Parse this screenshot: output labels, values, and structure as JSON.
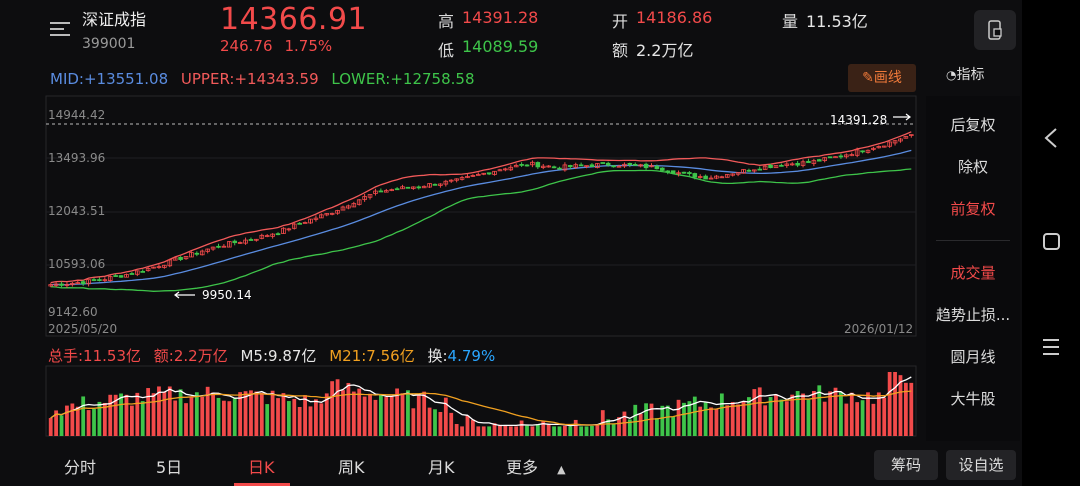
{
  "header": {
    "stock_name": "深证成指",
    "stock_code": "399001",
    "price": "14366.91",
    "change_value": "246.76",
    "change_pct": "1.75%",
    "high_label": "高",
    "high_value": "14391.28",
    "low_label": "低",
    "low_value": "14089.59",
    "open_label": "开",
    "open_value": "14186.86",
    "amount_label": "额",
    "amount_value": "2.2万亿",
    "volume_label": "量",
    "volume_value": "11.53亿"
  },
  "indicators": {
    "mid": "MID:+13551.08",
    "upper": "UPPER:+14343.59",
    "lower": "LOWER:+12758.58",
    "draw_button": "画线",
    "indicator_button": "指标"
  },
  "side_panel": {
    "items": [
      "后复权",
      "除权",
      "前复权",
      "成交量",
      "趋势止损...",
      "圆月线",
      "大牛股"
    ]
  },
  "chart_data": {
    "type": "candlestick",
    "y_ticks": [
      "14944.42",
      "13493.96",
      "12043.51",
      "10593.06",
      "9142.60"
    ],
    "x_start": "2025/05/20",
    "x_end": "2026/01/12",
    "max_marker": "14391.28",
    "min_marker": "9950.14",
    "ylim": [
      9142.6,
      14944.42
    ],
    "close_path": [
      9950,
      10000,
      10100,
      10250,
      10450,
      10700,
      10950,
      11150,
      11300,
      11500,
      11800,
      12050,
      12400,
      12700,
      12800,
      12900,
      13000,
      13200,
      13400,
      13500,
      13400,
      13450,
      13500,
      13450,
      13400,
      13200,
      13100,
      13250,
      13400,
      13500,
      13550,
      13700,
      13900,
      14100,
      14366
    ]
  },
  "volume_panel": {
    "total_hands": "总手:11.53亿",
    "amount": "额:2.2万亿",
    "m5": "M5:9.87亿",
    "m21": "M21:7.56亿",
    "turnover_label": "换:",
    "turnover_value": "4.79%"
  },
  "tabs": {
    "items": [
      "分时",
      "5日",
      "日K",
      "周K",
      "月K",
      "更多"
    ],
    "active": "日K",
    "chips": "筹码",
    "watchlist": "设自选"
  },
  "colors": {
    "up": "#f24a4a",
    "down": "#3ec44a",
    "mid": "#5a8ce0",
    "m21": "#f0a020",
    "background": "#0d0d0f"
  }
}
